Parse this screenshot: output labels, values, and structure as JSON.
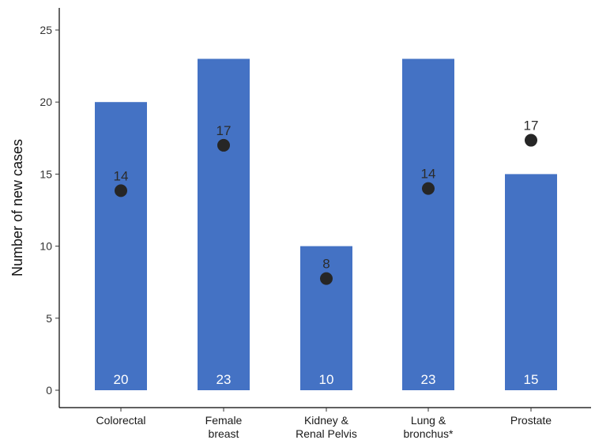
{
  "chart_data": {
    "type": "bar",
    "categories": [
      [
        "Colorectal"
      ],
      [
        "Female",
        "breast"
      ],
      [
        "Kidney &",
        "Renal Pelvis"
      ],
      [
        "Lung &",
        "bronchus*"
      ],
      [
        "Prostate"
      ]
    ],
    "series": [
      {
        "type": "bar",
        "values": [
          20,
          23,
          10,
          23,
          15
        ],
        "labels": [
          "20",
          "23",
          "10",
          "23",
          "15"
        ]
      },
      {
        "type": "point",
        "values": [
          13.85,
          17.0,
          7.75,
          14.0,
          17.35
        ],
        "labels": [
          "14",
          "17",
          "8",
          "14",
          "17"
        ]
      }
    ],
    "ylabel": "Number of new cases",
    "xlabel": "",
    "ylim": [
      0,
      26.3
    ],
    "yticks": [
      0,
      5,
      10,
      15,
      20,
      25
    ],
    "grid": false,
    "colors": {
      "bar": "#4472C4",
      "point": "#262626",
      "axis": "#000000"
    }
  }
}
